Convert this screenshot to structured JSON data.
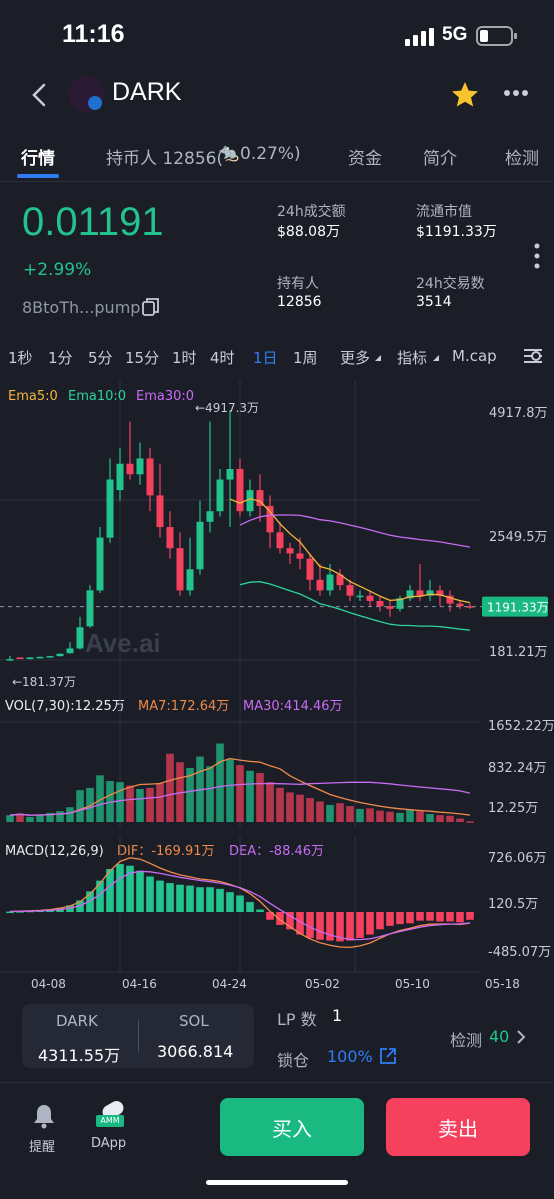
{
  "status_bar": {
    "time": "11:16",
    "network": "5G"
  },
  "header": {
    "title": "DARK"
  },
  "tabs": [
    {
      "label": "行情"
    },
    {
      "label": "持币人 12856("
    },
    {
      "label": "0.27%)"
    },
    {
      "label": "资金"
    },
    {
      "label": "简介"
    },
    {
      "label": "检测"
    }
  ],
  "price": {
    "value": "0.01191",
    "change": "+2.99%",
    "address": "8BtoTh...pump"
  },
  "stats": {
    "vol24_label": "24h成交额",
    "vol24_value": "$88.08万",
    "mcap_label": "流通市值",
    "mcap_value": "$1191.33万",
    "holders_label": "持有人",
    "holders_value": "12856",
    "tx24_label": "24h交易数",
    "tx24_value": "3514"
  },
  "timeframes": [
    "1秒",
    "1分",
    "5分",
    "15分",
    "1时",
    "4时",
    "1日",
    "1周",
    "更多",
    "指标",
    "M.cap"
  ],
  "chart_data": [
    {
      "type": "candlestick",
      "legend": [
        "Ema5:0",
        "Ema10:0",
        "Ema30:0"
      ],
      "y_ticks": [
        "4917.8万",
        "2549.5万",
        "181.21万"
      ],
      "current_label": "1191.33万",
      "high_annotation": "←4917.3万",
      "low_annotation": "←181.37万",
      "watermark": "Ave.ai",
      "candles": [
        [
          200,
          200,
          160,
          260
        ],
        [
          230,
          200,
          200,
          230
        ],
        [
          200,
          230,
          190,
          235
        ],
        [
          230,
          240,
          220,
          250
        ],
        [
          240,
          255,
          230,
          262
        ],
        [
          255,
          300,
          245,
          305
        ],
        [
          310,
          400,
          300,
          520
        ],
        [
          400,
          800,
          380,
          1000
        ],
        [
          820,
          1500,
          790,
          1600
        ],
        [
          1500,
          2500,
          1450,
          2700
        ],
        [
          2500,
          3600,
          2400,
          4000
        ],
        [
          3400,
          3900,
          3200,
          4200
        ],
        [
          3900,
          3700,
          3600,
          4700
        ],
        [
          3700,
          4000,
          3500,
          4300
        ],
        [
          4000,
          3300,
          3000,
          4200
        ],
        [
          3300,
          2700,
          2500,
          3900
        ],
        [
          2700,
          2300,
          2100,
          3000
        ],
        [
          2300,
          1500,
          1400,
          2600
        ],
        [
          1500,
          1900,
          1400,
          2500
        ],
        [
          1900,
          2800,
          1800,
          3200
        ],
        [
          2800,
          3000,
          2600,
          4700
        ],
        [
          3000,
          3600,
          2900,
          3800
        ],
        [
          3600,
          3800,
          2700,
          4917.3
        ],
        [
          3800,
          3000,
          2900,
          4000
        ],
        [
          3000,
          3400,
          2900,
          3600
        ],
        [
          3400,
          3100,
          2800,
          3700
        ],
        [
          3100,
          2600,
          2300,
          3300
        ],
        [
          2600,
          2300,
          2200,
          2800
        ],
        [
          2300,
          2200,
          2000,
          2400
        ],
        [
          2200,
          2100,
          1900,
          2500
        ],
        [
          2100,
          1700,
          1500,
          2200
        ],
        [
          1700,
          1500,
          1400,
          2000
        ],
        [
          1500,
          1800,
          1400,
          2000
        ],
        [
          1800,
          1600,
          1500,
          1900
        ],
        [
          1600,
          1400,
          1300,
          1700
        ],
        [
          1400,
          1400,
          1300,
          1500
        ],
        [
          1400,
          1300,
          1200,
          1500
        ],
        [
          1300,
          1200,
          1100,
          1400
        ],
        [
          1200,
          1150,
          1000,
          1300
        ],
        [
          1150,
          1350,
          1100,
          1400
        ],
        [
          1350,
          1500,
          1300,
          1600
        ],
        [
          1500,
          1400,
          1300,
          2000
        ],
        [
          1400,
          1500,
          1300,
          1700
        ],
        [
          1500,
          1400,
          1200,
          1600
        ],
        [
          1400,
          1250,
          1100,
          1500
        ],
        [
          1250,
          1200,
          1150,
          1300
        ],
        [
          1200,
          1191,
          1150,
          1250
        ]
      ]
    },
    {
      "type": "bar",
      "title": "VOL(7,30):12.25万",
      "legend": [
        "MA7:172.64万",
        "MA30:414.46万"
      ],
      "y_ticks": [
        "1652.22万",
        "832.24万",
        "12.25万"
      ],
      "values": [
        120,
        150,
        90,
        130,
        160,
        190,
        260,
        560,
        600,
        820,
        720,
        700,
        640,
        580,
        600,
        680,
        1200,
        1050,
        950,
        1150,
        980,
        1380,
        1100,
        1000,
        900,
        860,
        700,
        600,
        520,
        480,
        420,
        360,
        300,
        330,
        280,
        230,
        240,
        200,
        180,
        160,
        220,
        190,
        140,
        120,
        110,
        60,
        12.25
      ]
    },
    {
      "type": "bar",
      "title": "MACD(12,26,9)",
      "legend": [
        "DIF：-169.91万",
        "DEA：-88.46万"
      ],
      "y_ticks": [
        "726.06万",
        "120.5万",
        "-485.07万"
      ],
      "x_ticks": [
        "04-08",
        "04-16",
        "04-24",
        "05-02",
        "05-10",
        "05-18"
      ],
      "values": [
        5,
        10,
        15,
        20,
        30,
        50,
        80,
        140,
        250,
        380,
        520,
        580,
        560,
        500,
        430,
        380,
        350,
        330,
        320,
        300,
        300,
        280,
        240,
        200,
        120,
        30,
        -90,
        -150,
        -200,
        -260,
        -300,
        -320,
        -330,
        -340,
        -330,
        -300,
        -260,
        -200,
        -160,
        -140,
        -130,
        -100,
        -100,
        -110,
        -110,
        -120,
        -90
      ]
    }
  ],
  "bottom_panel": {
    "token_label": "DARK",
    "token_value": "4311.55万",
    "sol_label": "SOL",
    "sol_value": "3066.814",
    "lp_label": "LP 数",
    "lp_value": "1",
    "lock_label": "锁仓",
    "lock_value": "100%",
    "check_label": "检测",
    "check_value": "40"
  },
  "nav": {
    "alert_label": "提醒",
    "dapp_label": "DApp",
    "amm_badge": "AMM",
    "buy_label": "买入",
    "sell_label": "卖出"
  },
  "colors": {
    "up": "#22c38c",
    "down": "#f5405e",
    "accent": "#2f7df6",
    "background": "#1b1e27"
  }
}
